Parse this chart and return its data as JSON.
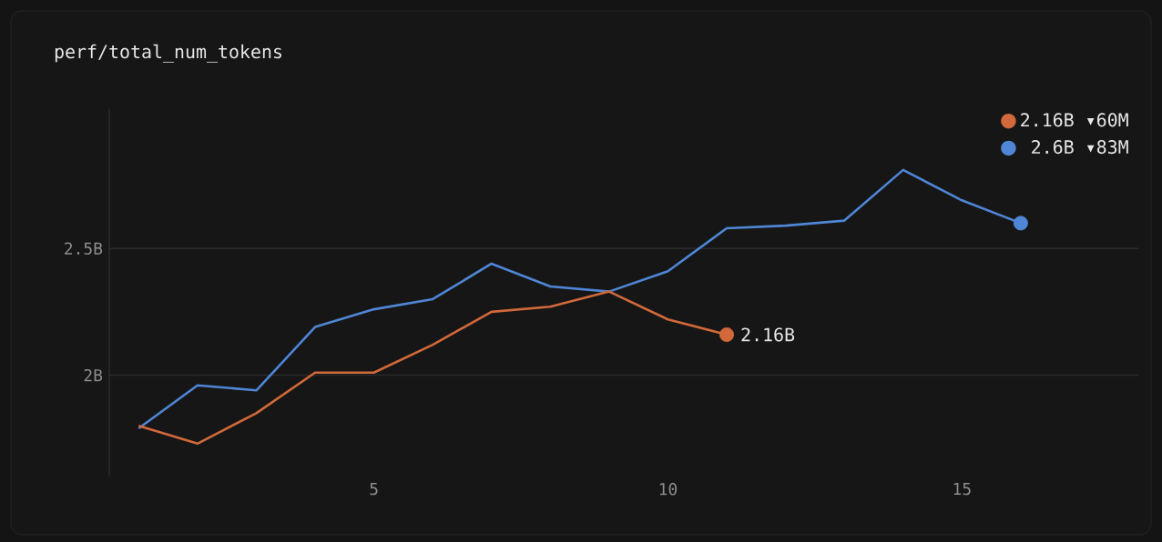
{
  "chart_data": {
    "type": "line",
    "title": "perf/total_num_tokens",
    "x": [
      1,
      2,
      3,
      4,
      5,
      6,
      7,
      8,
      9,
      10,
      11,
      12,
      13,
      14,
      15,
      16
    ],
    "series": [
      {
        "name": "2.16B ▾60M",
        "color": "#d2693a",
        "values": [
          1.8,
          1.73,
          1.85,
          2.01,
          2.01,
          2.12,
          2.25,
          2.27,
          2.33,
          2.22,
          2.16,
          null,
          null,
          null,
          null,
          null
        ]
      },
      {
        "name": "2.6B ▾83M",
        "color": "#4f86d6",
        "values": [
          1.79,
          1.96,
          1.94,
          2.19,
          2.26,
          2.3,
          2.44,
          2.35,
          2.33,
          2.41,
          2.58,
          2.59,
          2.61,
          2.81,
          2.69,
          2.6
        ]
      }
    ],
    "annotations": [
      {
        "text": "2.16B",
        "x": 11,
        "y": 2.16
      }
    ],
    "xlim": [
      0.5,
      18
    ],
    "xticks": [
      5,
      10,
      15
    ],
    "ylim": [
      1.6,
      3.05
    ],
    "yticks": [
      {
        "value": 2,
        "label": "2B"
      },
      {
        "value": 2.5,
        "label": "2.5B"
      }
    ],
    "grid": "y",
    "legend": "top right",
    "marker": "none",
    "line_style": "solid"
  }
}
